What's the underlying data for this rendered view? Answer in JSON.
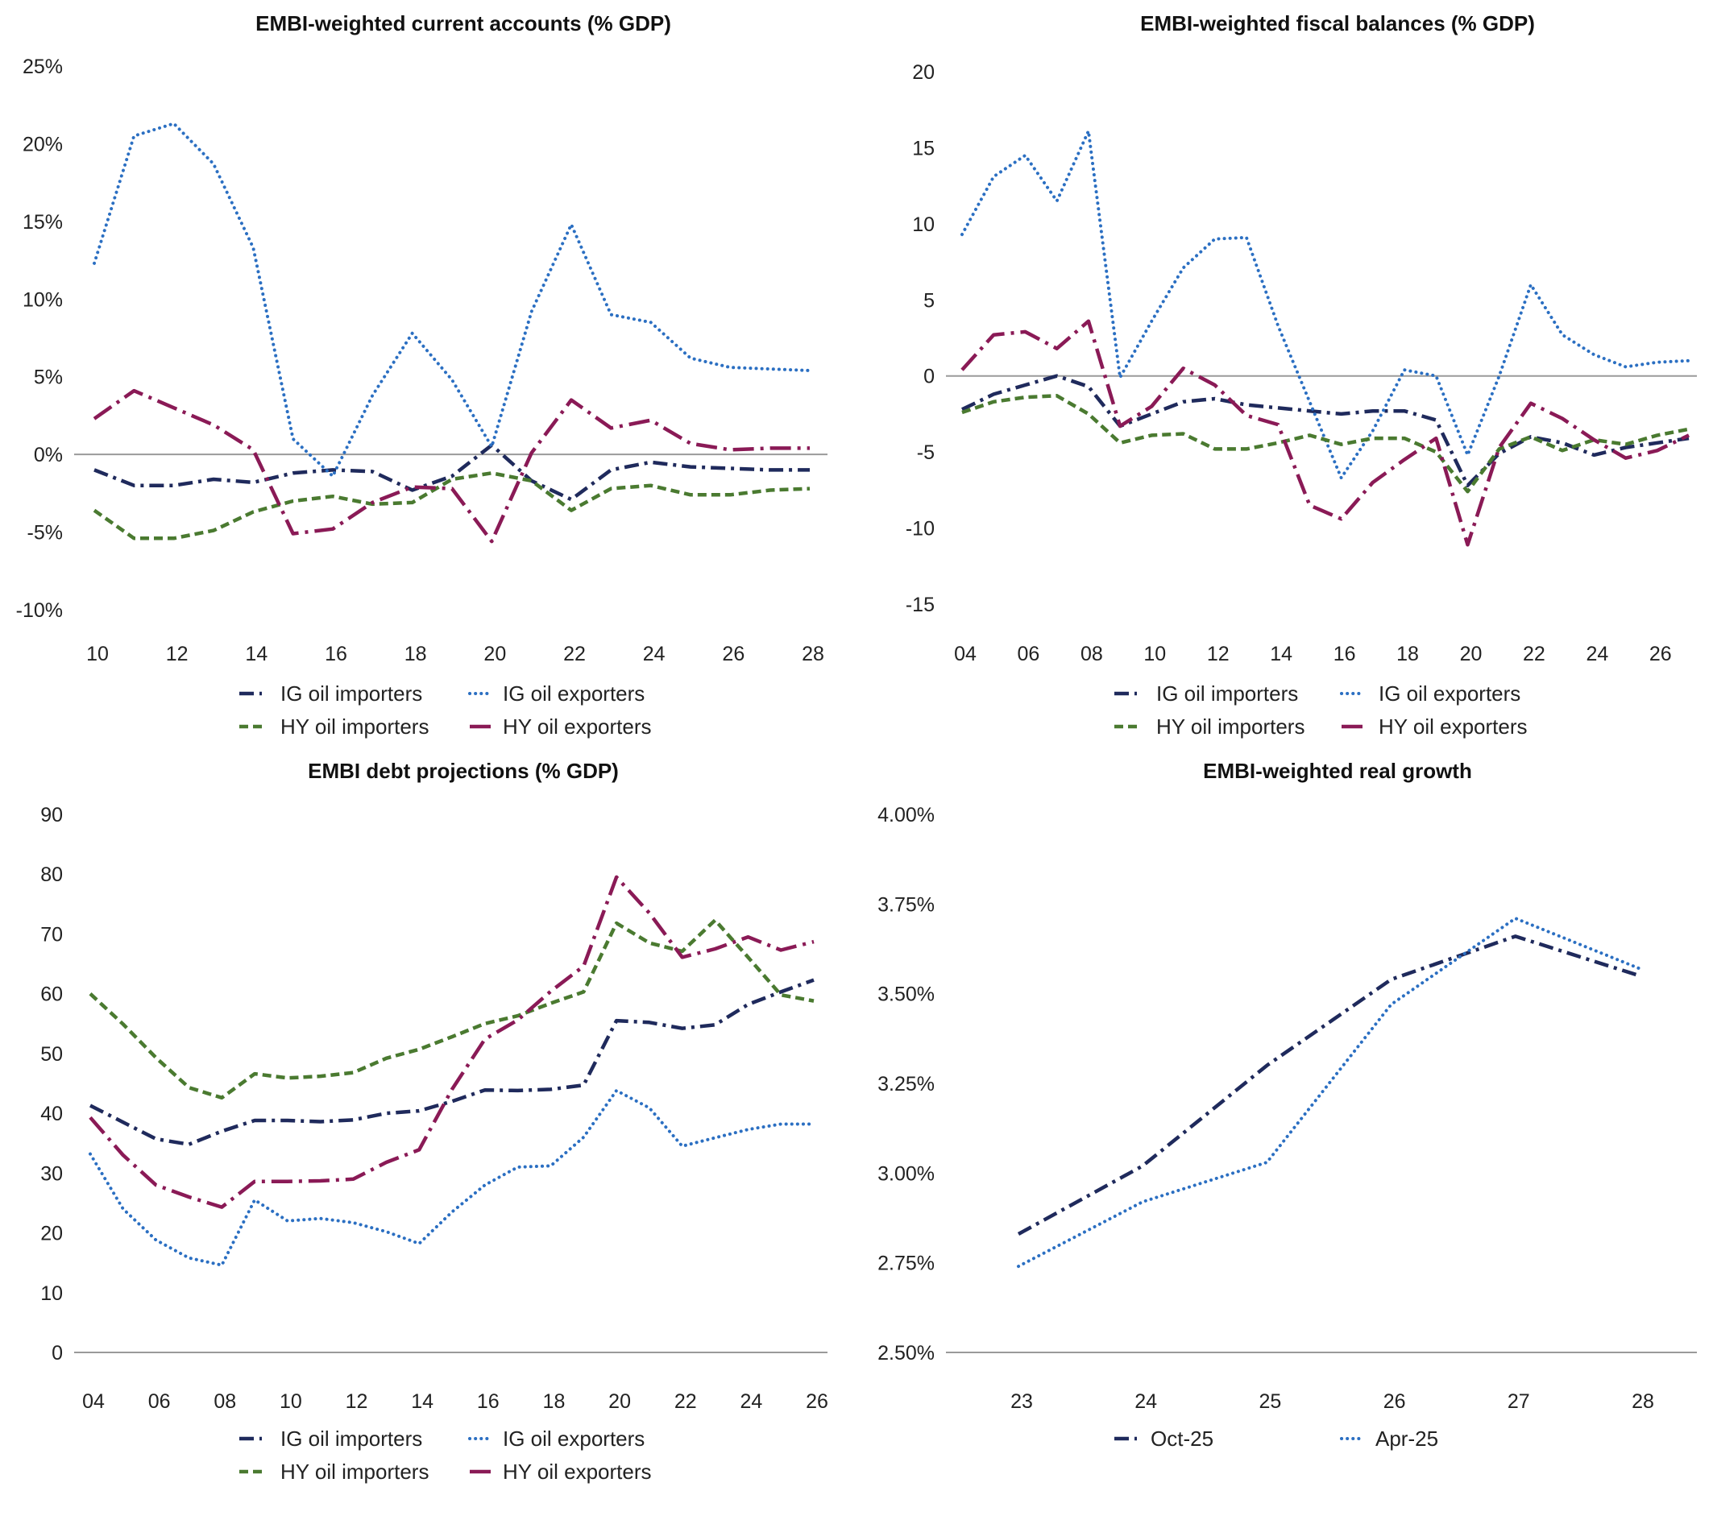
{
  "colors": {
    "ig_importers": "#1f2a5c",
    "ig_exporters": "#2b6fc2",
    "hy_importers": "#4a7a30",
    "hy_exporters": "#8a1a56",
    "axis": "#9a9a9a"
  },
  "chart_data": [
    {
      "type": "line",
      "title": "EMBI-weighted current accounts (% GDP)",
      "x": [
        "10",
        "11",
        "12",
        "13",
        "14",
        "15",
        "16",
        "17",
        "18",
        "19",
        "20",
        "21",
        "22",
        "23",
        "24",
        "25",
        "26",
        "27",
        "28"
      ],
      "x_tick_labels": [
        "10",
        "12",
        "14",
        "16",
        "18",
        "20",
        "22",
        "24",
        "26",
        "28"
      ],
      "y_tick_labels": [
        "25%",
        "20%",
        "15%",
        "10%",
        "5%",
        "0%",
        "-5%",
        "-10%"
      ],
      "y_ticks": [
        25,
        20,
        15,
        10,
        5,
        0,
        -5,
        -10
      ],
      "ylim": [
        -10,
        25
      ],
      "grid": false,
      "legend_position": "bottom",
      "series": [
        {
          "name": "IG oil importers",
          "style": "dash-dot",
          "values": [
            -1.0,
            -2.0,
            -2.0,
            -1.6,
            -1.8,
            -1.2,
            -1.0,
            -1.1,
            -2.3,
            -1.4,
            0.6,
            -1.7,
            -2.9,
            -1.0,
            -0.5,
            -0.8,
            -0.9,
            -1.0,
            -1.0
          ]
        },
        {
          "name": "IG oil exporters",
          "style": "dotted",
          "values": [
            12.3,
            20.5,
            21.3,
            18.7,
            13.3,
            1.0,
            -1.4,
            3.8,
            7.8,
            4.8,
            0.5,
            9.2,
            14.8,
            9.0,
            8.5,
            6.2,
            5.6,
            5.5,
            5.4
          ]
        },
        {
          "name": "HY oil importers",
          "style": "dashed",
          "values": [
            -3.6,
            -5.4,
            -5.4,
            -4.9,
            -3.7,
            -3.0,
            -2.7,
            -3.2,
            -3.1,
            -1.6,
            -1.2,
            -1.7,
            -3.6,
            -2.2,
            -2.0,
            -2.6,
            -2.6,
            -2.3,
            -2.2
          ]
        },
        {
          "name": "HY oil exporters",
          "style": "long-dash-dot",
          "values": [
            2.3,
            4.1,
            3.0,
            1.9,
            0.3,
            -5.1,
            -4.8,
            -3.1,
            -2.1,
            -2.2,
            -5.6,
            0.1,
            3.5,
            1.7,
            2.2,
            0.7,
            0.3,
            0.4,
            0.4
          ]
        }
      ]
    },
    {
      "type": "line",
      "title": "EMBI-weighted fiscal balances (% GDP)",
      "x": [
        "04",
        "05",
        "06",
        "07",
        "08",
        "09",
        "10",
        "11",
        "12",
        "13",
        "14",
        "15",
        "16",
        "17",
        "18",
        "19",
        "20",
        "21",
        "22",
        "23",
        "24",
        "25",
        "26",
        "27"
      ],
      "x_tick_labels": [
        "04",
        "06",
        "08",
        "10",
        "12",
        "14",
        "16",
        "18",
        "20",
        "22",
        "24",
        "26"
      ],
      "y_tick_labels": [
        "20",
        "15",
        "10",
        "5",
        "0",
        "-5",
        "-10",
        "-15"
      ],
      "y_ticks": [
        20,
        15,
        10,
        5,
        0,
        -5,
        -10,
        -15
      ],
      "ylim": [
        -15,
        20
      ],
      "grid": false,
      "legend_position": "bottom",
      "series": [
        {
          "name": "IG oil importers",
          "style": "dash-dot",
          "values": [
            -2.2,
            -1.2,
            -0.6,
            0.0,
            -0.7,
            -3.3,
            -2.5,
            -1.7,
            -1.5,
            -1.9,
            -2.1,
            -2.3,
            -2.5,
            -2.3,
            -2.3,
            -2.9,
            -7.2,
            -5.1,
            -4.0,
            -4.4,
            -5.2,
            -4.7,
            -4.4,
            -4.1
          ]
        },
        {
          "name": "IG oil exporters",
          "style": "dotted",
          "values": [
            9.3,
            13.1,
            14.5,
            11.5,
            16.1,
            -0.1,
            3.6,
            7.1,
            9.0,
            9.1,
            3.3,
            -1.7,
            -6.7,
            -3.6,
            0.4,
            0.0,
            -5.2,
            0.0,
            6.0,
            2.7,
            1.4,
            0.6,
            0.9,
            1.0
          ]
        },
        {
          "name": "HY oil importers",
          "style": "dashed",
          "values": [
            -2.4,
            -1.7,
            -1.4,
            -1.3,
            -2.5,
            -4.4,
            -3.9,
            -3.8,
            -4.8,
            -4.8,
            -4.4,
            -3.9,
            -4.5,
            -4.1,
            -4.1,
            -5.0,
            -7.6,
            -4.8,
            -4.0,
            -4.9,
            -4.2,
            -4.5,
            -3.9,
            -3.5
          ]
        },
        {
          "name": "HY oil exporters",
          "style": "long-dash-dot",
          "values": [
            0.4,
            2.7,
            2.9,
            1.8,
            3.6,
            -3.3,
            -2.0,
            0.5,
            -0.6,
            -2.6,
            -3.2,
            -8.5,
            -9.4,
            -7.0,
            -5.5,
            -4.1,
            -11.1,
            -4.7,
            -1.8,
            -2.8,
            -4.2,
            -5.4,
            -4.9,
            -3.9
          ]
        }
      ]
    },
    {
      "type": "line",
      "title": "EMBI debt projections (% GDP)",
      "x": [
        "04",
        "05",
        "06",
        "07",
        "08",
        "09",
        "10",
        "11",
        "12",
        "13",
        "14",
        "15",
        "16",
        "17",
        "18",
        "19",
        "20",
        "21",
        "22",
        "23",
        "24",
        "25",
        "26"
      ],
      "x_tick_labels": [
        "04",
        "06",
        "08",
        "10",
        "12",
        "14",
        "16",
        "18",
        "20",
        "22",
        "24",
        "26"
      ],
      "y_tick_labels": [
        "90",
        "80",
        "70",
        "60",
        "50",
        "40",
        "30",
        "20",
        "10",
        "0"
      ],
      "y_ticks": [
        90,
        80,
        70,
        60,
        50,
        40,
        30,
        20,
        10,
        0
      ],
      "ylim": [
        0,
        90
      ],
      "grid": false,
      "legend_position": "bottom",
      "series": [
        {
          "name": "IG oil importers",
          "style": "dash-dot",
          "values": [
            41.3,
            38.5,
            35.7,
            34.8,
            37.0,
            38.8,
            38.8,
            38.6,
            38.9,
            40.0,
            40.4,
            42.0,
            43.9,
            43.8,
            44.0,
            44.7,
            55.5,
            55.2,
            54.2,
            54.8,
            58.2,
            60.3,
            62.3
          ]
        },
        {
          "name": "IG oil exporters",
          "style": "dotted",
          "values": [
            33.2,
            24.0,
            18.8,
            15.8,
            14.6,
            25.5,
            22.0,
            22.4,
            21.7,
            20.2,
            18.2,
            23.5,
            28.0,
            31.0,
            31.2,
            36.0,
            43.8,
            40.9,
            34.5,
            35.9,
            37.3,
            38.2,
            38.2
          ]
        },
        {
          "name": "HY oil importers",
          "style": "dashed",
          "values": [
            60.0,
            54.9,
            49.3,
            44.3,
            42.6,
            46.6,
            45.9,
            46.2,
            46.8,
            49.2,
            50.7,
            52.8,
            55.0,
            56.3,
            58.4,
            60.3,
            71.8,
            68.5,
            67.1,
            72.3,
            66.1,
            59.8,
            58.8
          ]
        },
        {
          "name": "HY oil exporters",
          "style": "long-dash-dot",
          "values": [
            39.3,
            33.0,
            28.0,
            26.0,
            24.3,
            28.6,
            28.6,
            28.7,
            29.0,
            31.8,
            33.9,
            44.0,
            52.4,
            55.6,
            60.4,
            64.6,
            79.5,
            73.5,
            66.1,
            67.5,
            69.5,
            67.3,
            68.7
          ]
        }
      ]
    },
    {
      "type": "line",
      "title": "EMBI-weighted real growth",
      "x": [
        "23",
        "24",
        "25",
        "26",
        "27",
        "28"
      ],
      "x_tick_labels": [
        "23",
        "24",
        "25",
        "26",
        "27",
        "28"
      ],
      "y_tick_labels": [
        "4.00%",
        "3.75%",
        "3.50%",
        "3.25%",
        "3.00%",
        "2.75%",
        "2.50%"
      ],
      "y_ticks": [
        4.0,
        3.75,
        3.5,
        3.25,
        3.0,
        2.75,
        2.5
      ],
      "ylim": [
        2.5,
        4.0
      ],
      "grid": false,
      "legend_position": "bottom",
      "series": [
        {
          "name": "Oct-25",
          "style": "dash-dot",
          "values": [
            2.83,
            3.02,
            3.3,
            3.54,
            3.66,
            3.55
          ]
        },
        {
          "name": "Apr-25",
          "style": "dotted",
          "values": [
            2.74,
            2.92,
            3.03,
            3.47,
            3.71,
            3.57
          ]
        }
      ]
    }
  ]
}
